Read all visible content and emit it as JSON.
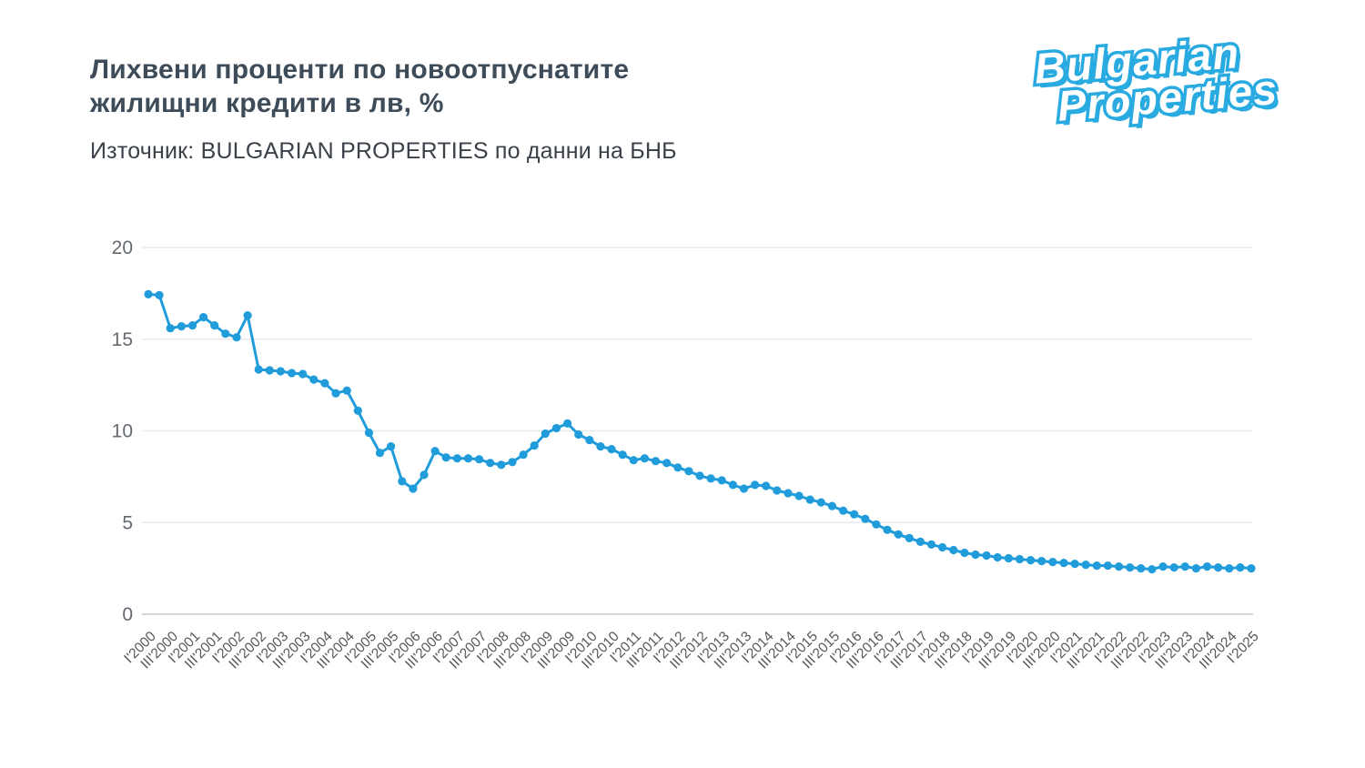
{
  "header": {
    "title_line1": "Лихвени проценти по новоотпуснатите",
    "title_line2": "жилищни кредити в лв, %",
    "source": "Източник: BULGARIAN PROPERTIES по данни на БНБ"
  },
  "logo": {
    "word1": "Bulgarian",
    "word2": "Properties",
    "brand_color": "#29ABE2"
  },
  "chart_data": {
    "type": "line",
    "title": "Лихвени проценти по новоотпуснатите жилищни кредити в лв, %",
    "source": "Източник: BULGARIAN PROPERTIES по данни на БНБ",
    "xlabel": "",
    "ylabel": "",
    "ylim": [
      0,
      20
    ],
    "yticks": [
      0,
      5,
      10,
      15,
      20
    ],
    "grid": true,
    "legend": "none",
    "line_color": "#219CDB",
    "marker_color": "#219CDB",
    "grid_color": "#e8eaec",
    "baseline_color": "#d2d6d9",
    "axis_text_color": "#63696f",
    "x_tick_step": 2,
    "tick_labels": [
      "I'2000",
      "III'2000",
      "I'2001",
      "III'2001",
      "I'2002",
      "III'2002",
      "I'2003",
      "III'2003",
      "I'2004",
      "III'2004",
      "I'2005",
      "III'2005",
      "I'2006",
      "III'2006",
      "I'2007",
      "III'2007",
      "I'2008",
      "III'2008",
      "I'2009",
      "III'2009",
      "I'2010",
      "III'2010",
      "I'2011",
      "III'2011",
      "I'2012",
      "III'2012",
      "I'2013",
      "III'2013",
      "I'2014",
      "III'2014",
      "I'2015",
      "III'2015",
      "I'2016",
      "III'2016",
      "I'2017",
      "III'2017",
      "I'2018",
      "III'2018",
      "I'2019",
      "III'2019",
      "I'2020",
      "III'2020",
      "I'2021",
      "III'2021",
      "I'2022",
      "III'2022",
      "I'2023",
      "III'2023",
      "I'2024",
      "III'2024",
      "I'2025"
    ],
    "values": [
      17.45,
      17.4,
      15.6,
      15.7,
      15.75,
      16.2,
      15.75,
      15.3,
      15.1,
      16.3,
      13.35,
      13.3,
      13.25,
      13.15,
      13.1,
      12.8,
      12.6,
      12.05,
      12.2,
      11.1,
      9.9,
      8.8,
      9.15,
      7.25,
      6.85,
      7.6,
      8.9,
      8.55,
      8.5,
      8.5,
      8.45,
      8.25,
      8.15,
      8.3,
      8.7,
      9.2,
      9.85,
      10.15,
      10.4,
      9.8,
      9.5,
      9.15,
      9.0,
      8.7,
      8.4,
      8.5,
      8.35,
      8.25,
      8.0,
      7.8,
      7.55,
      7.4,
      7.3,
      7.05,
      6.85,
      7.05,
      7.0,
      6.75,
      6.6,
      6.45,
      6.25,
      6.1,
      5.9,
      5.65,
      5.45,
      5.2,
      4.9,
      4.6,
      4.35,
      4.15,
      3.95,
      3.8,
      3.65,
      3.5,
      3.35,
      3.25,
      3.2,
      3.1,
      3.05,
      3.0,
      2.95,
      2.9,
      2.85,
      2.8,
      2.75,
      2.7,
      2.65,
      2.65,
      2.6,
      2.55,
      2.5,
      2.45,
      2.6,
      2.55,
      2.6,
      2.5,
      2.6,
      2.55,
      2.5,
      2.55,
      2.5
    ]
  }
}
